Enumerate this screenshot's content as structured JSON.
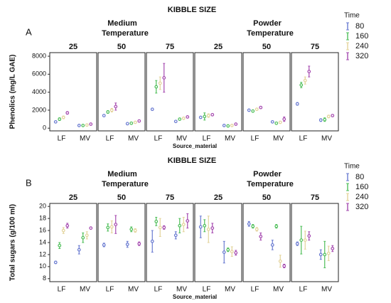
{
  "chart_data": [
    {
      "type": "errorbar",
      "panel_label": "A",
      "title": "KIBBLE SIZE",
      "ylabel": "Phenolics (mg/L GAE)",
      "xlabel": "Source_material",
      "categories": [
        "LF",
        "MV"
      ],
      "legend_title": "Time",
      "series": [
        {
          "name": "80",
          "color": "#6a7bd1"
        },
        {
          "name": "160",
          "color": "#4fbf5a"
        },
        {
          "name": "240",
          "color": "#e3d39a"
        },
        {
          "name": "320",
          "color": "#a64bb0"
        }
      ],
      "ylim": [
        -300,
        8400
      ],
      "yticks": [
        0,
        2000,
        4000,
        6000,
        8000
      ],
      "groups": [
        {
          "name": "Medium",
          "subtitle": "Temperature",
          "facets": [
            {
              "label": "25",
              "values": [
                [
                  700,
                  300
                ],
                [
                  1000,
                  300
                ],
                [
                  1200,
                  350
                ],
                [
                  1700,
                  450
                ]
              ],
              "errors": [
                [
                  100,
                  50
                ],
                [
                  150,
                  50
                ],
                [
                  150,
                  50
                ],
                [
                  150,
                  50
                ]
              ]
            },
            {
              "label": "50",
              "values": [
                [
                  1400,
                  500
                ],
                [
                  1800,
                  550
                ],
                [
                  2000,
                  650
                ],
                [
                  2400,
                  800
                ]
              ],
              "errors": [
                [
                  100,
                  80
                ],
                [
                  150,
                  80
                ],
                [
                  200,
                  80
                ],
                [
                  400,
                  80
                ]
              ]
            },
            {
              "label": "75",
              "values": [
                [
                  2100,
                  750
                ],
                [
                  4600,
                  1000
                ],
                [
                  5000,
                  1100
                ],
                [
                  5600,
                  1250
                ]
              ],
              "errors": [
                [
                  100,
                  80
                ],
                [
                  700,
                  100
                ],
                [
                  700,
                  100
                ],
                [
                  1600,
                  100
                ]
              ]
            }
          ]
        },
        {
          "name": "Powder",
          "subtitle": "Temperature",
          "facets": [
            {
              "label": "25",
              "values": [
                [
                  1200,
                  300
                ],
                [
                  1300,
                  250
                ],
                [
                  1400,
                  300
                ],
                [
                  1500,
                  450
                ]
              ],
              "errors": [
                [
                  100,
                  80
                ],
                [
                  400,
                  80
                ],
                [
                  200,
                  80
                ],
                [
                  100,
                  80
                ]
              ]
            },
            {
              "label": "50",
              "values": [
                [
                  2000,
                  700
                ],
                [
                  1900,
                  550
                ],
                [
                  2100,
                  650
                ],
                [
                  2300,
                  1000
                ]
              ],
              "errors": [
                [
                  100,
                  80
                ],
                [
                  100,
                  80
                ],
                [
                  100,
                  80
                ],
                [
                  100,
                  250
                ]
              ]
            },
            {
              "label": "75",
              "values": [
                [
                  2700,
                  900
                ],
                [
                  4800,
                  950
                ],
                [
                  5300,
                  1300
                ],
                [
                  6300,
                  1400
                ]
              ],
              "errors": [
                [
                  150,
                  150
                ],
                [
                  300,
                  200
                ],
                [
                  400,
                  150
                ],
                [
                  600,
                  100
                ]
              ]
            }
          ]
        }
      ]
    },
    {
      "type": "errorbar",
      "panel_label": "B",
      "title": "KIBBLE SIZE",
      "ylabel": "Total sugars (g/100 ml)",
      "xlabel": "Source_material",
      "categories": [
        "LF",
        "MV"
      ],
      "legend_title": "Time",
      "series": [
        {
          "name": "80",
          "color": "#6a7bd1"
        },
        {
          "name": "160",
          "color": "#4fbf5a"
        },
        {
          "name": "240",
          "color": "#e3d39a"
        },
        {
          "name": "320",
          "color": "#a64bb0"
        }
      ],
      "ylim": [
        7.5,
        20.5
      ],
      "yticks": [
        8,
        10,
        12,
        14,
        16,
        18,
        20
      ],
      "groups": [
        {
          "name": "Medium",
          "subtitle": "Temperature",
          "facets": [
            {
              "label": "25",
              "values": [
                [
                  10.7,
                  12.8
                ],
                [
                  13.5,
                  14.8
                ],
                [
                  16.0,
                  15.2
                ],
                [
                  16.8,
                  16.4
                ]
              ],
              "errors": [
                [
                  0.2,
                  0.7
                ],
                [
                  0.5,
                  0.8
                ],
                [
                  0.5,
                  0.6
                ],
                [
                  0.4,
                  0.1
                ]
              ]
            },
            {
              "label": "50",
              "values": [
                [
                  13.6,
                  13.7
                ],
                [
                  16.5,
                  16.2
                ],
                [
                  16.6,
                  16.0
                ],
                [
                  17.0,
                  13.8
                ]
              ],
              "errors": [
                [
                  0.3,
                  0.5
                ],
                [
                  0.6,
                  0.4
                ],
                [
                  1.0,
                  0.3
                ],
                [
                  1.5,
                  0.3
                ]
              ]
            },
            {
              "label": "75",
              "values": [
                [
                  14.2,
                  15.2
                ],
                [
                  17.5,
                  16.8
                ],
                [
                  16.5,
                  17.0
                ],
                [
                  16.5,
                  17.6
                ]
              ],
              "errors": [
                [
                  1.8,
                  0.6
                ],
                [
                  0.7,
                  1.2
                ],
                [
                  1.5,
                  1.2
                ],
                [
                  0.3,
                  1.2
                ]
              ]
            }
          ]
        },
        {
          "name": "Powder",
          "subtitle": "Temperature",
          "facets": [
            {
              "label": "25",
              "values": [
                [
                  16.6,
                  12.4
                ],
                [
                  16.8,
                  12.8
                ],
                [
                  16.2,
                  12.5
                ],
                [
                  16.4,
                  12.3
                ]
              ],
              "errors": [
                [
                  1.8,
                  1.8
                ],
                [
                  1.0,
                  0.3
                ],
                [
                  2.2,
                  0.8
                ],
                [
                  0.8,
                  0.4
                ]
              ]
            },
            {
              "label": "50",
              "values": [
                [
                  17.1,
                  13.6
                ],
                [
                  16.7,
                  16.7
                ],
                [
                  16.2,
                  10.9
                ],
                [
                  15.0,
                  10.1
                ]
              ],
              "errors": [
                [
                  0.4,
                  0.8
                ],
                [
                  0.3,
                  0.3
                ],
                [
                  0.3,
                  1.0
                ],
                [
                  0.6,
                  0.3
                ]
              ]
            },
            {
              "label": "75",
              "values": [
                [
                  13.8,
                  12.0
                ],
                [
                  14.4,
                  12.0
                ],
                [
                  14.4,
                  12.2
                ],
                [
                  15.1,
                  13.0
                ]
              ],
              "errors": [
                [
                  0.3,
                  0.8
                ],
                [
                  2.3,
                  2.2
                ],
                [
                  1.5,
                  1.2
                ],
                [
                  0.7,
                  0.5
                ]
              ]
            }
          ]
        }
      ]
    }
  ]
}
